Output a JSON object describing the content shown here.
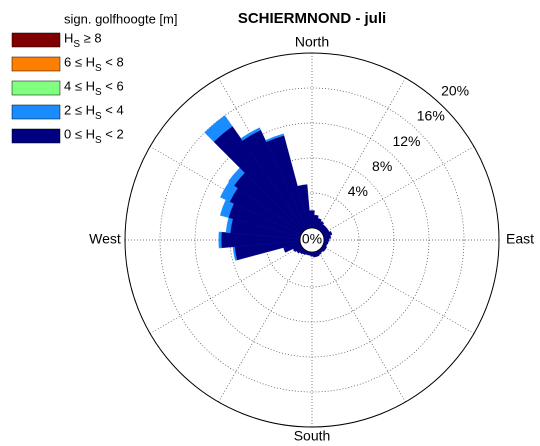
{
  "chart_data": {
    "type": "polar_bar",
    "title": "SCHIERMNOND - juli",
    "legend_title": "sign. golfhoogte [m]",
    "compass_labels": [
      "North",
      "East",
      "South",
      "West"
    ],
    "directions": [
      0,
      10,
      20,
      30,
      40,
      50,
      60,
      70,
      80,
      90,
      100,
      110,
      120,
      130,
      140,
      150,
      160,
      170,
      180,
      190,
      200,
      210,
      220,
      230,
      240,
      250,
      260,
      270,
      280,
      290,
      300,
      310,
      320,
      330,
      340,
      350
    ],
    "rlim": [
      0,
      20
    ],
    "rticks": [
      {
        "value": 0,
        "label": "0%"
      },
      {
        "value": 4,
        "label": "4%"
      },
      {
        "value": 8,
        "label": "8%"
      },
      {
        "value": 12,
        "label": "12%"
      },
      {
        "value": 16,
        "label": "16%"
      },
      {
        "value": 20,
        "label": "20%"
      }
    ],
    "grid": true,
    "series": [
      {
        "name": "0 ≤ HS < 2",
        "color": "#000080",
        "values": [
          2.0,
          1.5,
          1.2,
          1.0,
          0.8,
          0.8,
          0.8,
          1.0,
          0.8,
          0.6,
          0.5,
          0.4,
          0.5,
          0.5,
          0.4,
          0.5,
          0.6,
          0.6,
          0.5,
          0.4,
          0.4,
          0.5,
          0.6,
          0.8,
          1.0,
          2.0,
          7.5,
          9.0,
          8.0,
          8.5,
          9.0,
          9.5,
          14.5,
          12.5,
          11.0,
          5.0
        ]
      },
      {
        "name": "2 ≤ HS < 4",
        "color": "#1a8cff",
        "values": [
          0,
          0,
          0,
          0,
          0,
          0,
          0,
          0,
          0,
          0,
          0,
          0,
          0,
          0,
          0,
          0,
          0,
          0,
          0,
          0,
          0,
          0,
          0,
          0,
          0,
          0,
          0.2,
          0.3,
          0.5,
          1.0,
          1.2,
          0.8,
          1.5,
          0.3,
          0.2,
          0
        ]
      },
      {
        "name": "4 ≤ HS < 6",
        "color": "#80ff80",
        "values": [
          0,
          0,
          0,
          0,
          0,
          0,
          0,
          0,
          0,
          0,
          0,
          0,
          0,
          0,
          0,
          0,
          0,
          0,
          0,
          0,
          0,
          0,
          0,
          0,
          0,
          0,
          0,
          0,
          0,
          0,
          0,
          0,
          0,
          0,
          0,
          0
        ]
      },
      {
        "name": "6 ≤ HS < 8",
        "color": "#ff8000",
        "values": [
          0,
          0,
          0,
          0,
          0,
          0,
          0,
          0,
          0,
          0,
          0,
          0,
          0,
          0,
          0,
          0,
          0,
          0,
          0,
          0,
          0,
          0,
          0,
          0,
          0,
          0,
          0,
          0,
          0,
          0,
          0,
          0,
          0,
          0,
          0,
          0
        ]
      },
      {
        "name": "HS ≥ 8",
        "color": "#800000",
        "values": [
          0,
          0,
          0,
          0,
          0,
          0,
          0,
          0,
          0,
          0,
          0,
          0,
          0,
          0,
          0,
          0,
          0,
          0,
          0,
          0,
          0,
          0,
          0,
          0,
          0,
          0,
          0,
          0,
          0,
          0,
          0,
          0,
          0,
          0,
          0,
          0
        ]
      }
    ]
  }
}
